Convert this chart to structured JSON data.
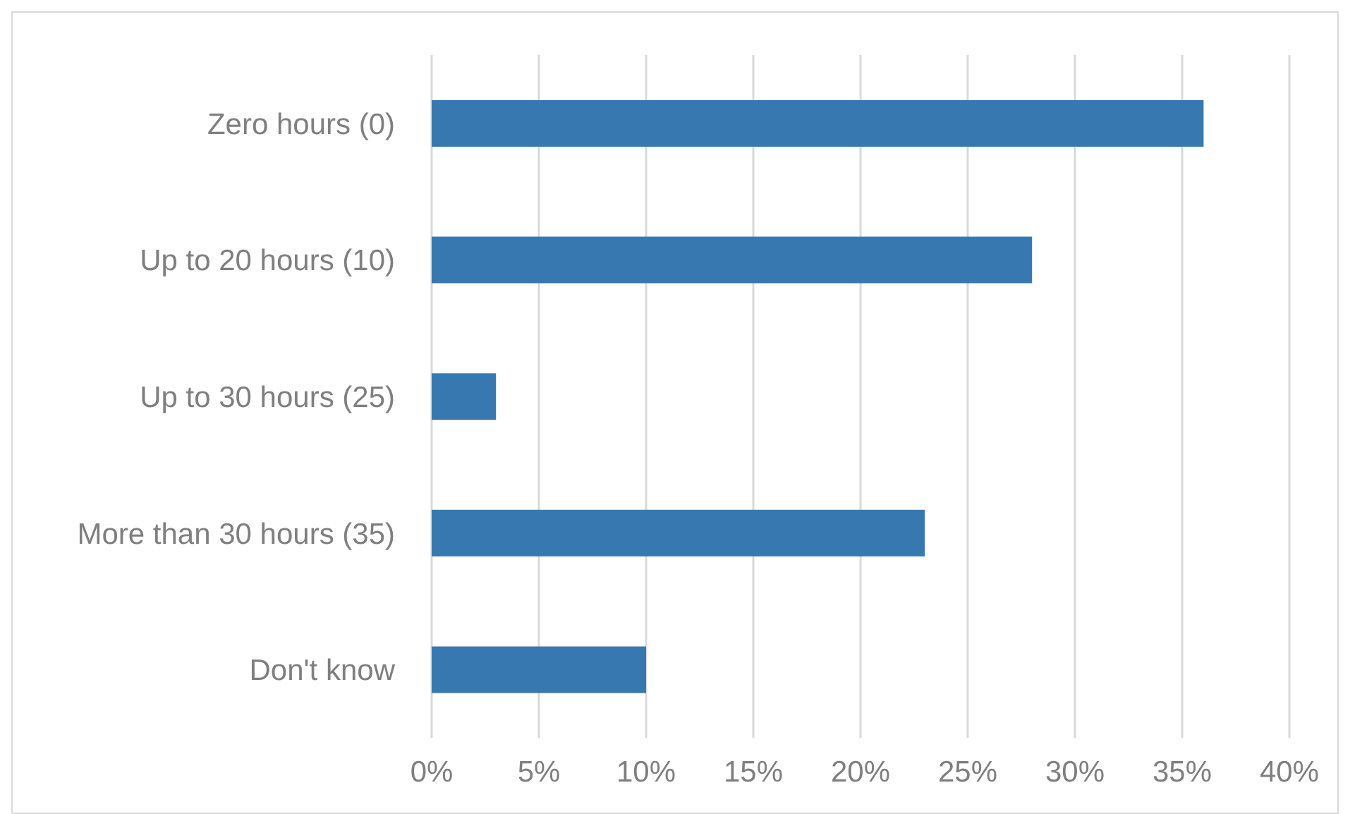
{
  "chart_data": {
    "type": "bar",
    "orientation": "horizontal",
    "categories": [
      "Zero hours (0)",
      "Up to 20 hours (10)",
      "Up to 30 hours (25)",
      "More than 30 hours (35)",
      "Don't know"
    ],
    "values": [
      36,
      28,
      3,
      23,
      10
    ],
    "color": "#3878b0",
    "xlim": [
      0,
      40
    ],
    "xticks": [
      {
        "value": 0,
        "label": "0%"
      },
      {
        "value": 5,
        "label": "5%"
      },
      {
        "value": 10,
        "label": "10%"
      },
      {
        "value": 15,
        "label": "15%"
      },
      {
        "value": 20,
        "label": "20%"
      },
      {
        "value": 25,
        "label": "25%"
      },
      {
        "value": 30,
        "label": "30%"
      },
      {
        "value": 35,
        "label": "35%"
      },
      {
        "value": 40,
        "label": "40%"
      }
    ],
    "grid": "x"
  }
}
